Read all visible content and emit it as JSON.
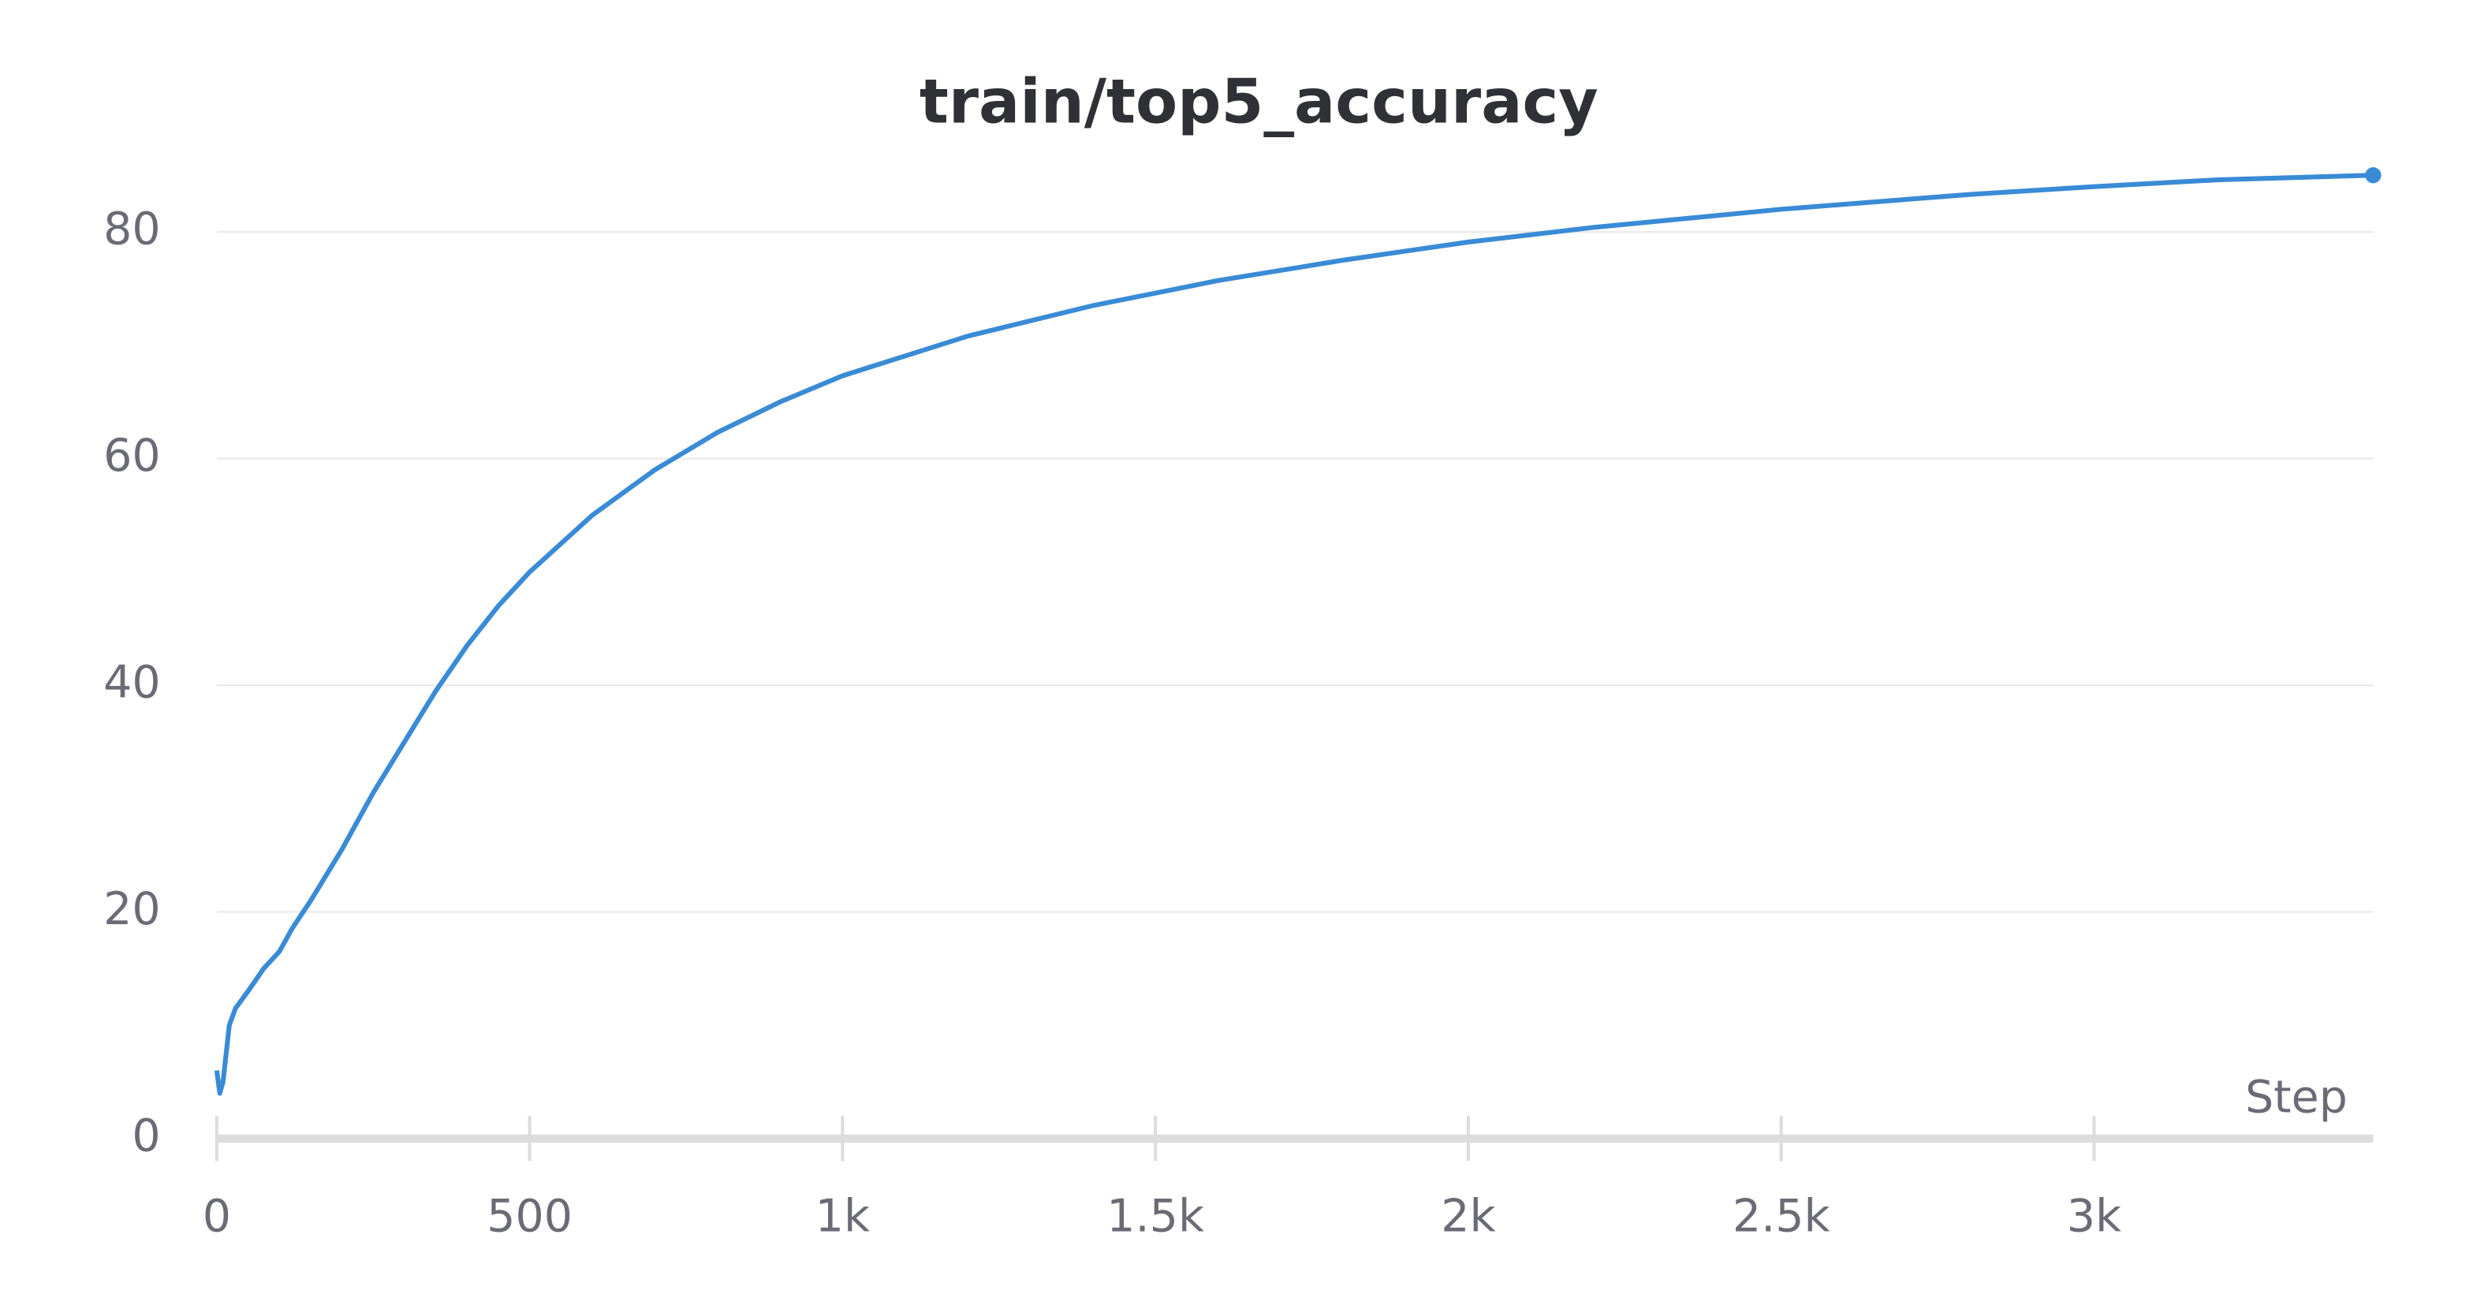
{
  "chart_data": {
    "type": "line",
    "title": "train/top5_accuracy",
    "x_label": "Step",
    "x": [
      0,
      5,
      10,
      20,
      30,
      50,
      75,
      100,
      120,
      150,
      200,
      250,
      300,
      350,
      400,
      450,
      500,
      600,
      700,
      800,
      900,
      1000,
      1200,
      1400,
      1600,
      1800,
      2000,
      2200,
      2500,
      2800,
      3000,
      3200,
      3446
    ],
    "series": [
      {
        "name": "train/top5_accuracy",
        "color": "#3a8bd6",
        "values": [
          6,
          4,
          5,
          10,
          11.5,
          13,
          15,
          16.5,
          18.5,
          21,
          25.5,
          30.5,
          35,
          39.5,
          43.5,
          47,
          50,
          55,
          59,
          62.3,
          65,
          67.3,
          70.8,
          73.5,
          75.7,
          77.5,
          79.1,
          80.4,
          82,
          83.3,
          84,
          84.6,
          85
        ]
      }
    ],
    "xlim": [
      0,
      3446
    ],
    "ylim": [
      0,
      85
    ],
    "xticks": [
      0,
      500,
      {
        "value": 1000,
        "label": "1k"
      },
      {
        "value": 1500,
        "label": "1.5k"
      },
      {
        "value": 2000,
        "label": "2k"
      },
      {
        "value": 2500,
        "label": "2.5k"
      },
      {
        "value": 3000,
        "label": "3k"
      }
    ],
    "yticks": [
      0,
      20,
      40,
      60,
      80
    ],
    "grid": true
  }
}
